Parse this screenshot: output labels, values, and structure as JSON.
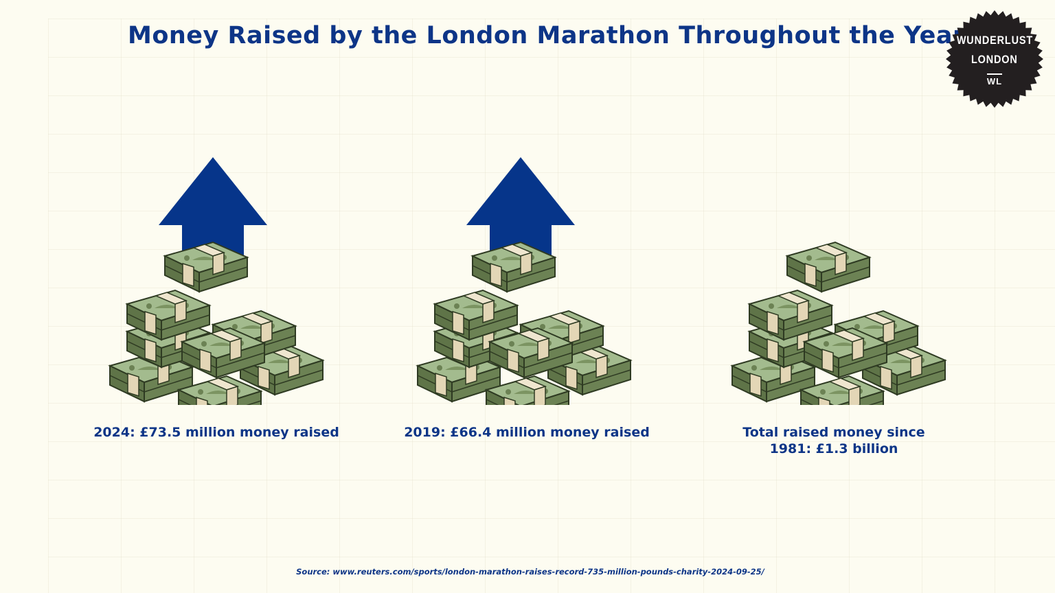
{
  "title": "Money Raised by the London Marathon Throughout the Years",
  "badge": {
    "line1": "WUNDERLUST",
    "line2": "LONDON",
    "monogram": "WL"
  },
  "items": [
    {
      "label": "2024: £73.5 million money raised",
      "icon": "up-arrow-with-money-stack"
    },
    {
      "label": "2019: £66.4 million money raised",
      "icon": "up-arrow-with-money-stack"
    },
    {
      "label": "Total raised money since 1981: £1.3 billion",
      "icon": "money-stack"
    }
  ],
  "source": "Source: www.reuters.com/sports/london-marathon-raises-record-735-million-pounds-charity-2024-09-25/",
  "colors": {
    "background": "#fdfcf1",
    "title": "#0d3587",
    "arrow": "#06358a",
    "bill_light": "#a3bb8e",
    "bill_dark": "#5f7448",
    "band": "#efe6cf",
    "badge": "#231f20"
  },
  "chart_data": {
    "type": "table",
    "title": "Money Raised by the London Marathon Throughout the Years",
    "categories": [
      "2024",
      "2019",
      "Total since 1981"
    ],
    "values": [
      73.5,
      66.4,
      1300
    ],
    "unit": "£ million"
  }
}
